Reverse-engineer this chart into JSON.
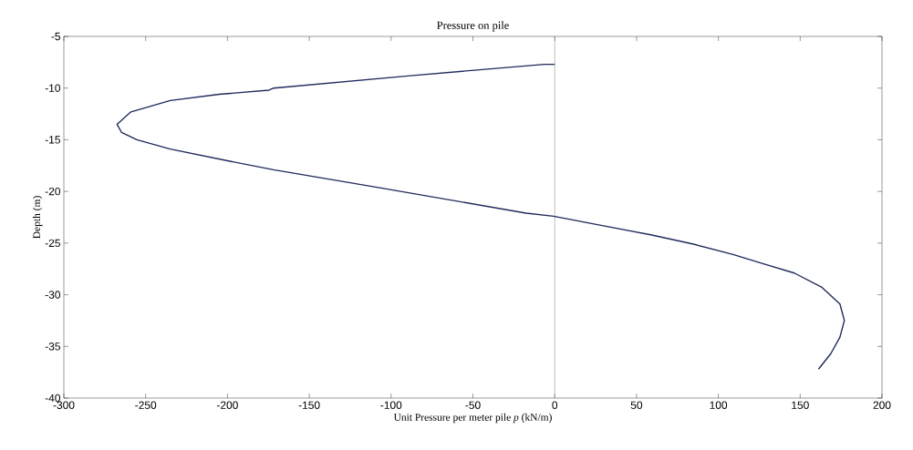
{
  "chart_data": {
    "type": "line",
    "title": "Pressure on pile",
    "xlabel": "Unit Pressure per meter pile  *p* (kN/m)",
    "ylabel": "Depth (m)",
    "x": [
      0,
      -6.3,
      -88.2,
      -171.8,
      -174.6,
      -205,
      -235,
      -259,
      -267.5,
      -264.7,
      -255.4,
      -235,
      -197.8,
      -171.8,
      -108.6,
      -17.5,
      -0.7,
      29,
      58.7,
      84.8,
      109,
      127.6,
      146.4,
      163,
      174.3,
      177,
      174.3,
      168.7,
      161.2
    ],
    "series": [
      {
        "color": "#1f2a5c",
        "values": [
          -7.7,
          -7.7,
          -8.8,
          -10.0,
          -10.2,
          -10.6,
          -11.2,
          -12.3,
          -13.5,
          -14.3,
          -15.0,
          -15.9,
          -17.1,
          -17.9,
          -19.6,
          -22.1,
          -22.4,
          -23.3,
          -24.2,
          -25.1,
          -26.1,
          -27.0,
          -27.9,
          -29.25,
          -30.9,
          -32.5,
          -34.1,
          -35.7,
          -37.2
        ]
      }
    ],
    "xlim": [
      -300,
      200
    ],
    "ylim": [
      -40,
      -5
    ],
    "xticks": [
      -300,
      -250,
      -200,
      -150,
      -100,
      -50,
      0,
      50,
      100,
      150,
      200
    ],
    "yticks": [
      -40,
      -35,
      -30,
      -25,
      -20,
      -15,
      -10,
      -5
    ],
    "ref_lines": [
      {
        "axis": "x",
        "value": 0,
        "color": "#808080"
      }
    ],
    "grid": false,
    "marker": "none",
    "line_style": "solid"
  }
}
